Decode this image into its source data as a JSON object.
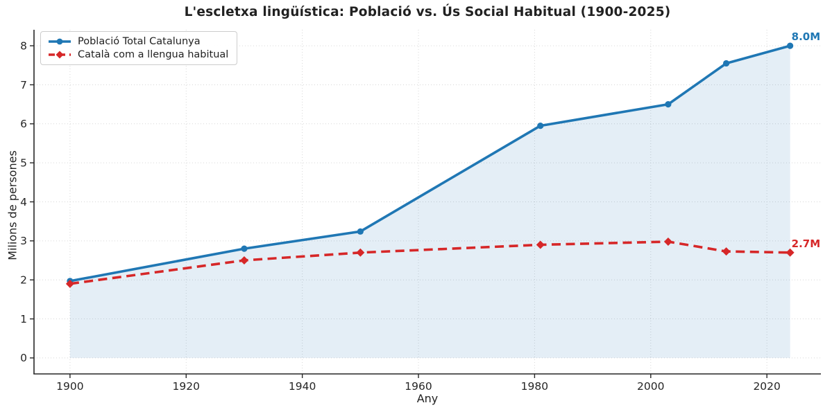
{
  "chart_data": {
    "type": "line",
    "title": "L'escletxa lingüística: Població vs. Ús Social Habitual (1900-2025)",
    "xlabel": "Any",
    "ylabel": "Milions de persones",
    "x": [
      1900,
      1930,
      1950,
      1981,
      2003,
      2013,
      2024
    ],
    "series": [
      {
        "name": "Població Total Catalunya",
        "color": "#1f77b4",
        "line_style": "solid",
        "marker": "circle",
        "values": [
          1.97,
          2.8,
          3.24,
          5.95,
          6.5,
          7.55,
          8.0
        ],
        "area_fill": true,
        "area_fill_color": "rgba(31,119,180,0.12)",
        "end_label": "8.0M"
      },
      {
        "name": "Català com a llengua habitual",
        "color": "#d62728",
        "line_style": "dashed",
        "marker": "diamond",
        "values": [
          1.9,
          2.5,
          2.7,
          2.9,
          2.98,
          2.73,
          2.7
        ],
        "area_fill": false,
        "end_label": "2.7M"
      }
    ],
    "xticks": [
      1900,
      1920,
      1940,
      1960,
      1980,
      2000,
      2020
    ],
    "yticks": [
      0,
      1,
      2,
      3,
      4,
      5,
      6,
      7,
      8
    ],
    "xlim": [
      1893.8,
      2029.3
    ],
    "ylim": [
      -0.41,
      8.41
    ],
    "grid": "dotted",
    "grid_color": "#d6d6d6",
    "spine_color": "#262626",
    "legend_position": "upper-left",
    "background": "#ffffff"
  }
}
